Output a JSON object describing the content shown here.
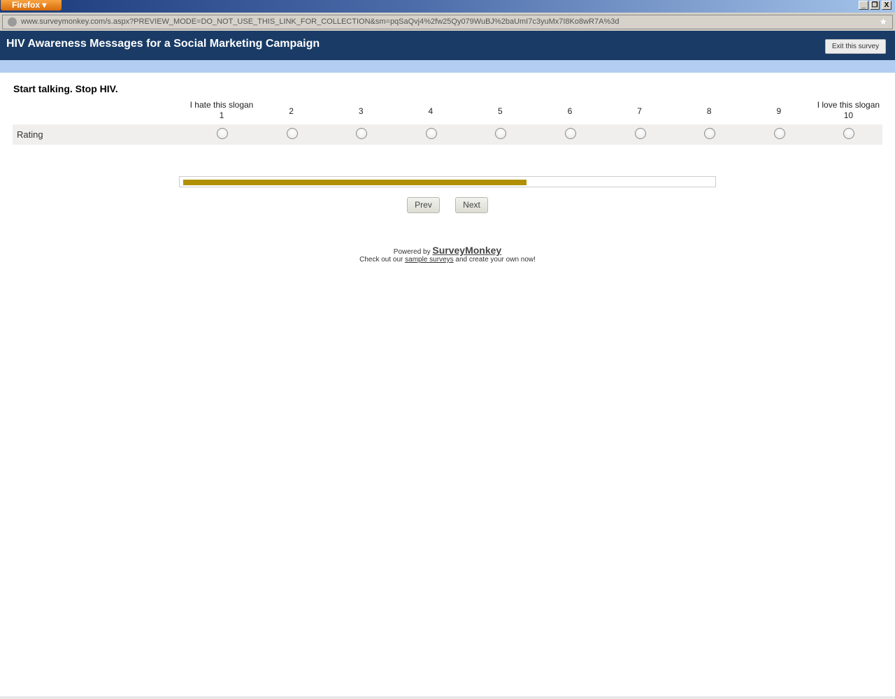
{
  "browser": {
    "app_button": "Firefox",
    "url": "www.surveymonkey.com/s.aspx?PREVIEW_MODE=DO_NOT_USE_THIS_LINK_FOR_COLLECTION&sm=pqSaQvj4%2fw25Qy079WuBJ%2baUmI7c3yuMx7I8Ko8wR7A%3d",
    "window_controls": {
      "minimize": "_",
      "restore": "❐",
      "close": "X"
    }
  },
  "header": {
    "title": "HIV Awareness Messages for a Social Marketing Campaign",
    "exit_label": "Exit this survey"
  },
  "question": {
    "title": "Start talking. Stop HIV.",
    "columns": [
      {
        "top": "I hate this slogan",
        "value": "1"
      },
      {
        "top": "",
        "value": "2"
      },
      {
        "top": "",
        "value": "3"
      },
      {
        "top": "",
        "value": "4"
      },
      {
        "top": "",
        "value": "5"
      },
      {
        "top": "",
        "value": "6"
      },
      {
        "top": "",
        "value": "7"
      },
      {
        "top": "",
        "value": "8"
      },
      {
        "top": "",
        "value": "9"
      },
      {
        "top": "I love this slogan",
        "value": "10"
      }
    ],
    "row_label": "Rating",
    "selected": null
  },
  "progress": {
    "percent": 65,
    "color": "#b09000"
  },
  "nav": {
    "prev": "Prev",
    "next": "Next"
  },
  "footer": {
    "powered_by": "Powered by",
    "brand": "SurveyMonkey",
    "check_prefix": "Check out our",
    "sample_link": "sample surveys",
    "check_suffix": "and create your own now!"
  }
}
